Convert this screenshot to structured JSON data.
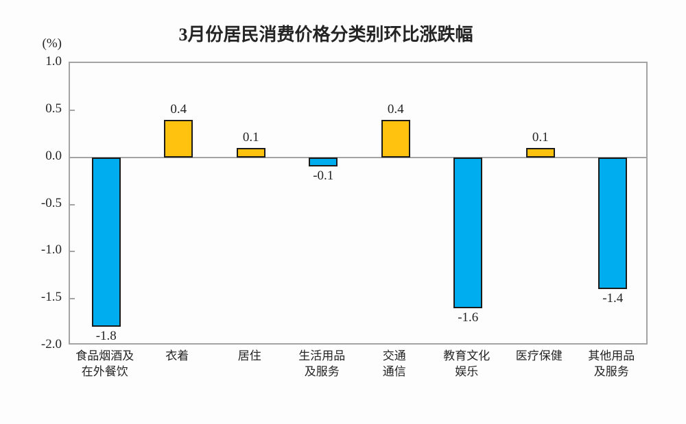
{
  "title": "3月份居民消费价格分类别环比涨跌幅",
  "chart_data": {
    "type": "bar",
    "title": "3月份居民消费价格分类别环比涨跌幅",
    "xlabel": "",
    "ylabel": "(%)",
    "categories": [
      [
        "食品烟酒及",
        "在外餐饮"
      ],
      [
        "衣着"
      ],
      [
        "居住"
      ],
      [
        "生活用品",
        "及服务"
      ],
      [
        "交通",
        "通信"
      ],
      [
        "教育文化",
        "娱乐"
      ],
      [
        "医疗保健"
      ],
      [
        "其他用品",
        "及服务"
      ]
    ],
    "values": [
      -1.8,
      0.4,
      0.1,
      -0.1,
      0.4,
      -1.6,
      0.1,
      -1.4
    ],
    "data_labels": [
      "-1.8",
      "0.4",
      "0.1",
      "-0.1",
      "0.4",
      "-1.6",
      "0.1",
      "-1.4"
    ],
    "ylim": [
      -2.0,
      1.0
    ],
    "ytick_labels": [
      "1.0",
      "0.5",
      "0.0",
      "-0.5",
      "-1.0",
      "-1.5",
      "-2.0"
    ],
    "grid": false,
    "legend_position": "none",
    "positive_color": "#FFC20E",
    "negative_color": "#00AEEF",
    "bar_outline_color": "#1a1a1a",
    "axis_line_color": "#a3a3a3",
    "text_color": "#242424"
  }
}
